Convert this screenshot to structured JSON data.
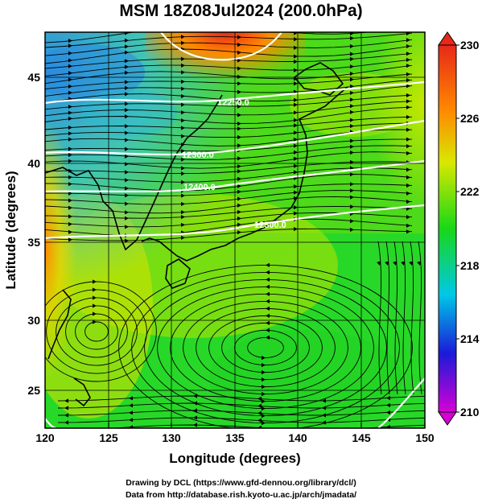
{
  "title": "MSM 18Z08Jul2024 (200.0hPa)",
  "x_axis": {
    "label": "Longitude (degrees)",
    "ticks": [
      "120",
      "125",
      "130",
      "135",
      "140",
      "145",
      "150"
    ]
  },
  "y_axis": {
    "label": "Latitude (degrees)",
    "ticks": [
      "25",
      "30",
      "35",
      "40",
      "45"
    ]
  },
  "colorbar": {
    "ticks": [
      "230",
      "226",
      "222",
      "218",
      "214",
      "210"
    ]
  },
  "contour_labels": [
    "12250.0",
    "12300.0",
    "12400.0",
    "12500.0"
  ],
  "footer": {
    "line1": "Drawing by DCL (https://www.gfd-dennou.org/library/dcl/)",
    "line2": "Data from http://database.rish.kyoto-u.ac.jp/arch/jmadata/"
  },
  "chart_data": {
    "type": "heatmap",
    "title": "MSM 18Z08Jul2024 (200.0hPa)",
    "xlabel": "Longitude (degrees)",
    "ylabel": "Latitude (degrees)",
    "xlim": [
      120,
      150
    ],
    "ylim": [
      22.4,
      47.6
    ],
    "colorbar_range": [
      210,
      230
    ],
    "colormap": [
      "#d600d6",
      "#1a1ad8",
      "#00c8e6",
      "#18d818",
      "#d8e800",
      "#ff8a00",
      "#e82818"
    ],
    "contour_levels": [
      12250,
      12300,
      12400,
      12500
    ],
    "overlay": "streamlines",
    "grid": true
  }
}
